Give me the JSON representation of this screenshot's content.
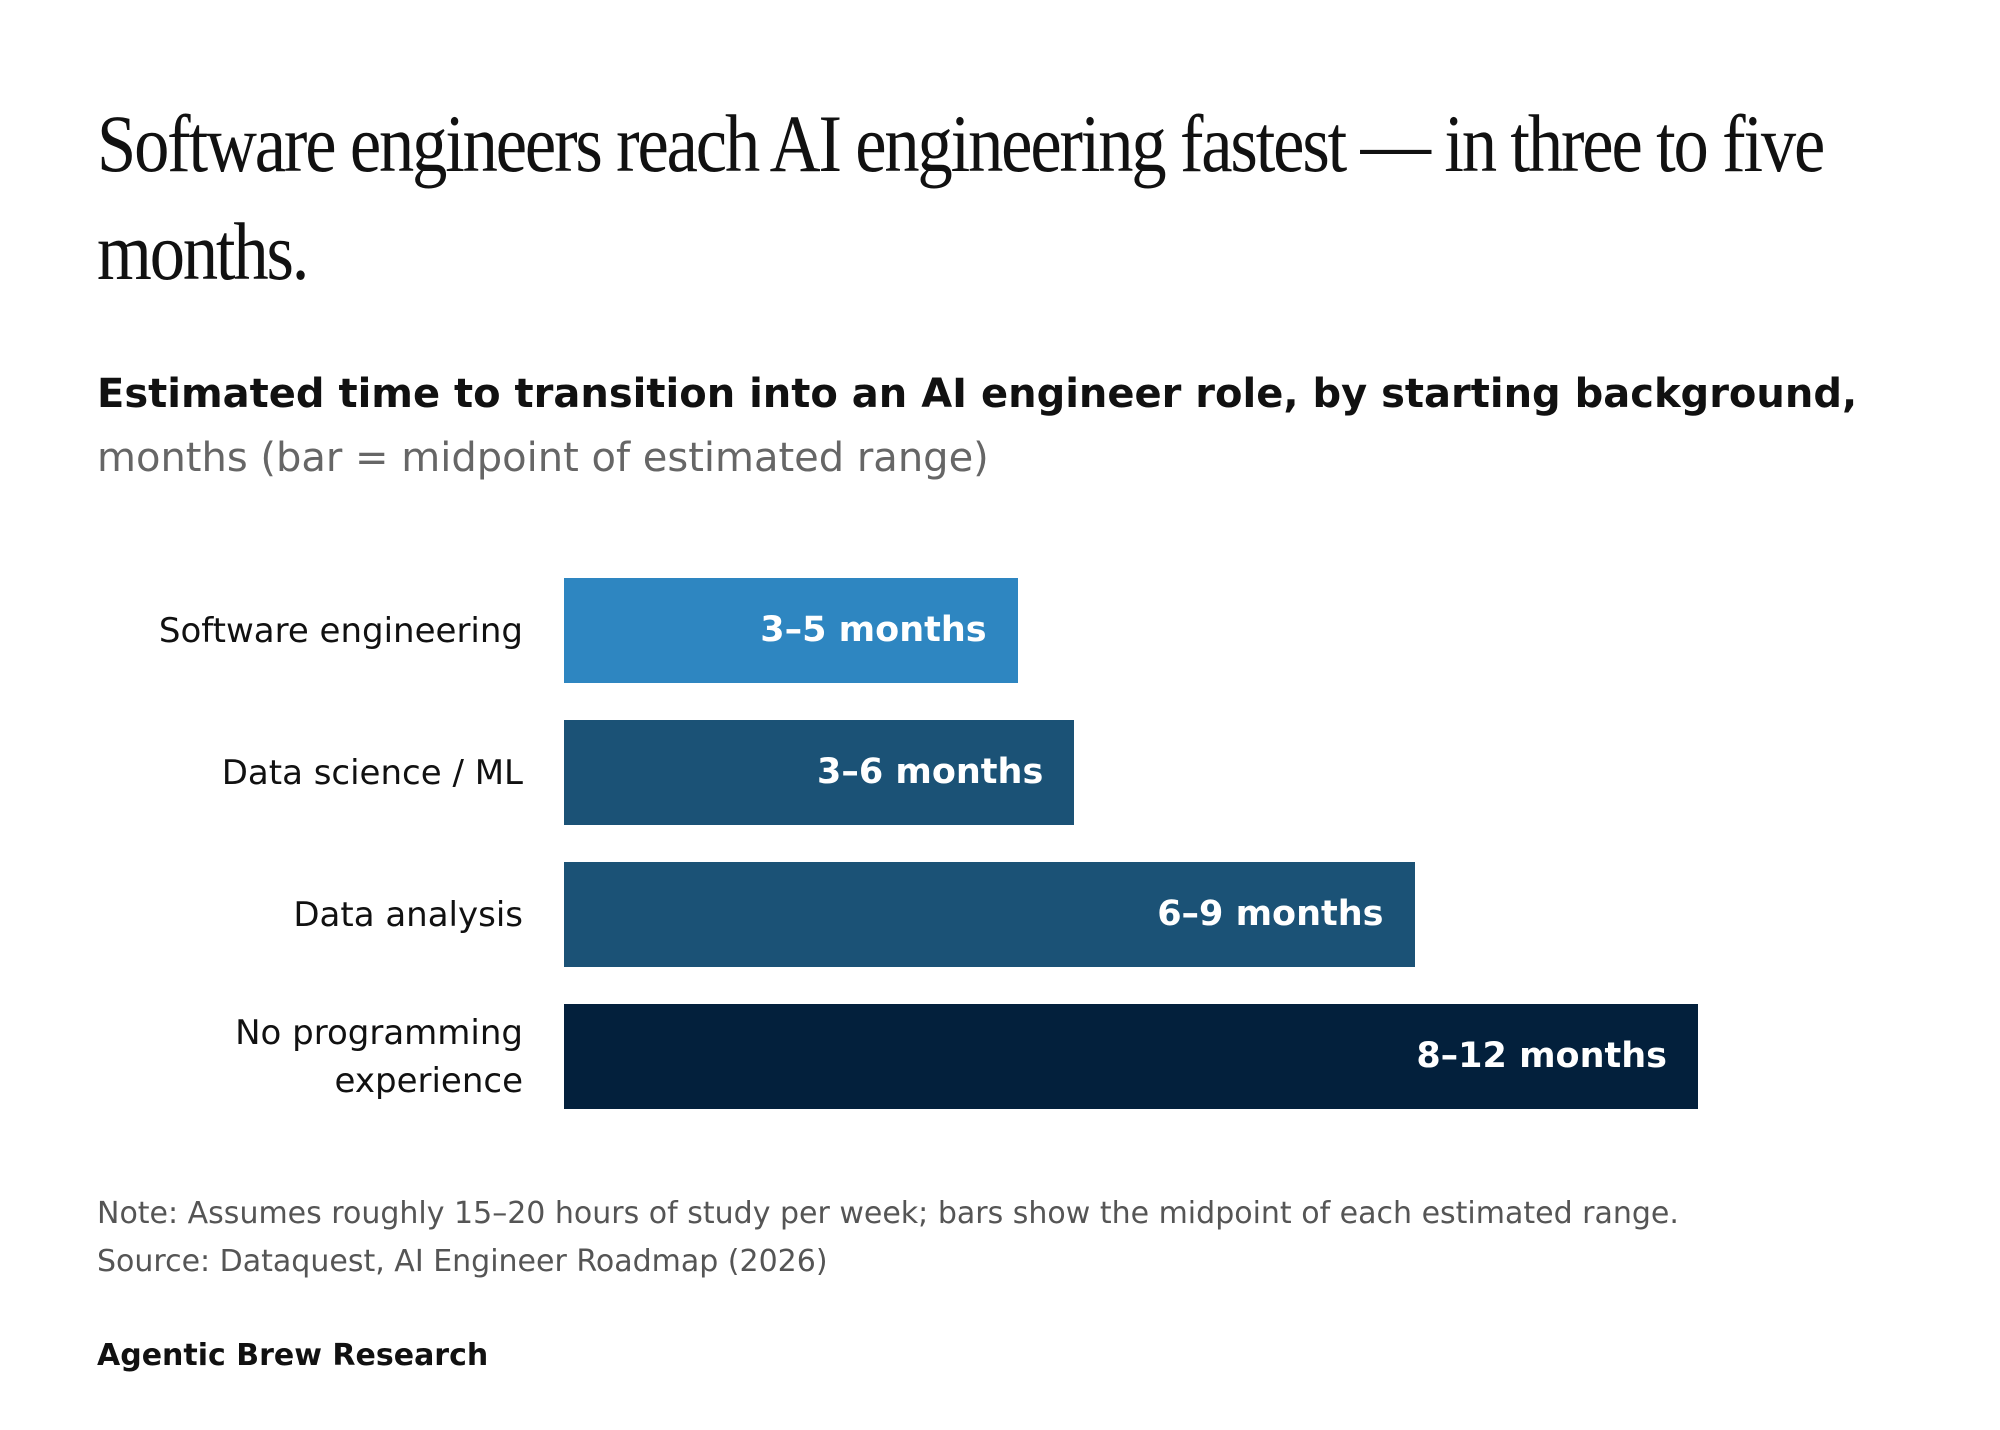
{
  "chart_data": {
    "type": "bar",
    "title": "Software engineers reach AI engineering fastest — in three to five months.",
    "subtitle": "Estimated time to transition into an AI engineer role, by starting background,",
    "subtitle_note": "months (bar = midpoint of estimated range)",
    "categories": [
      "Software engineering",
      "Data science / ML",
      "Data analysis",
      "No programming experience"
    ],
    "values": [
      4,
      4.5,
      7.5,
      10
    ],
    "value_labels": [
      "3–5 months",
      "3–6 months",
      "6–9 months",
      "8–12 months"
    ],
    "colors": [
      "#2e86c1",
      "#1b5276",
      "#1b5276",
      "#03203c"
    ],
    "note": "Note: Assumes roughly 15–20 hours of study per week; bars show the midpoint of each estimated range.",
    "source": "Source: Dataquest, AI Engineer Roadmap (2026)",
    "footer": "Agentic Brew Research"
  }
}
